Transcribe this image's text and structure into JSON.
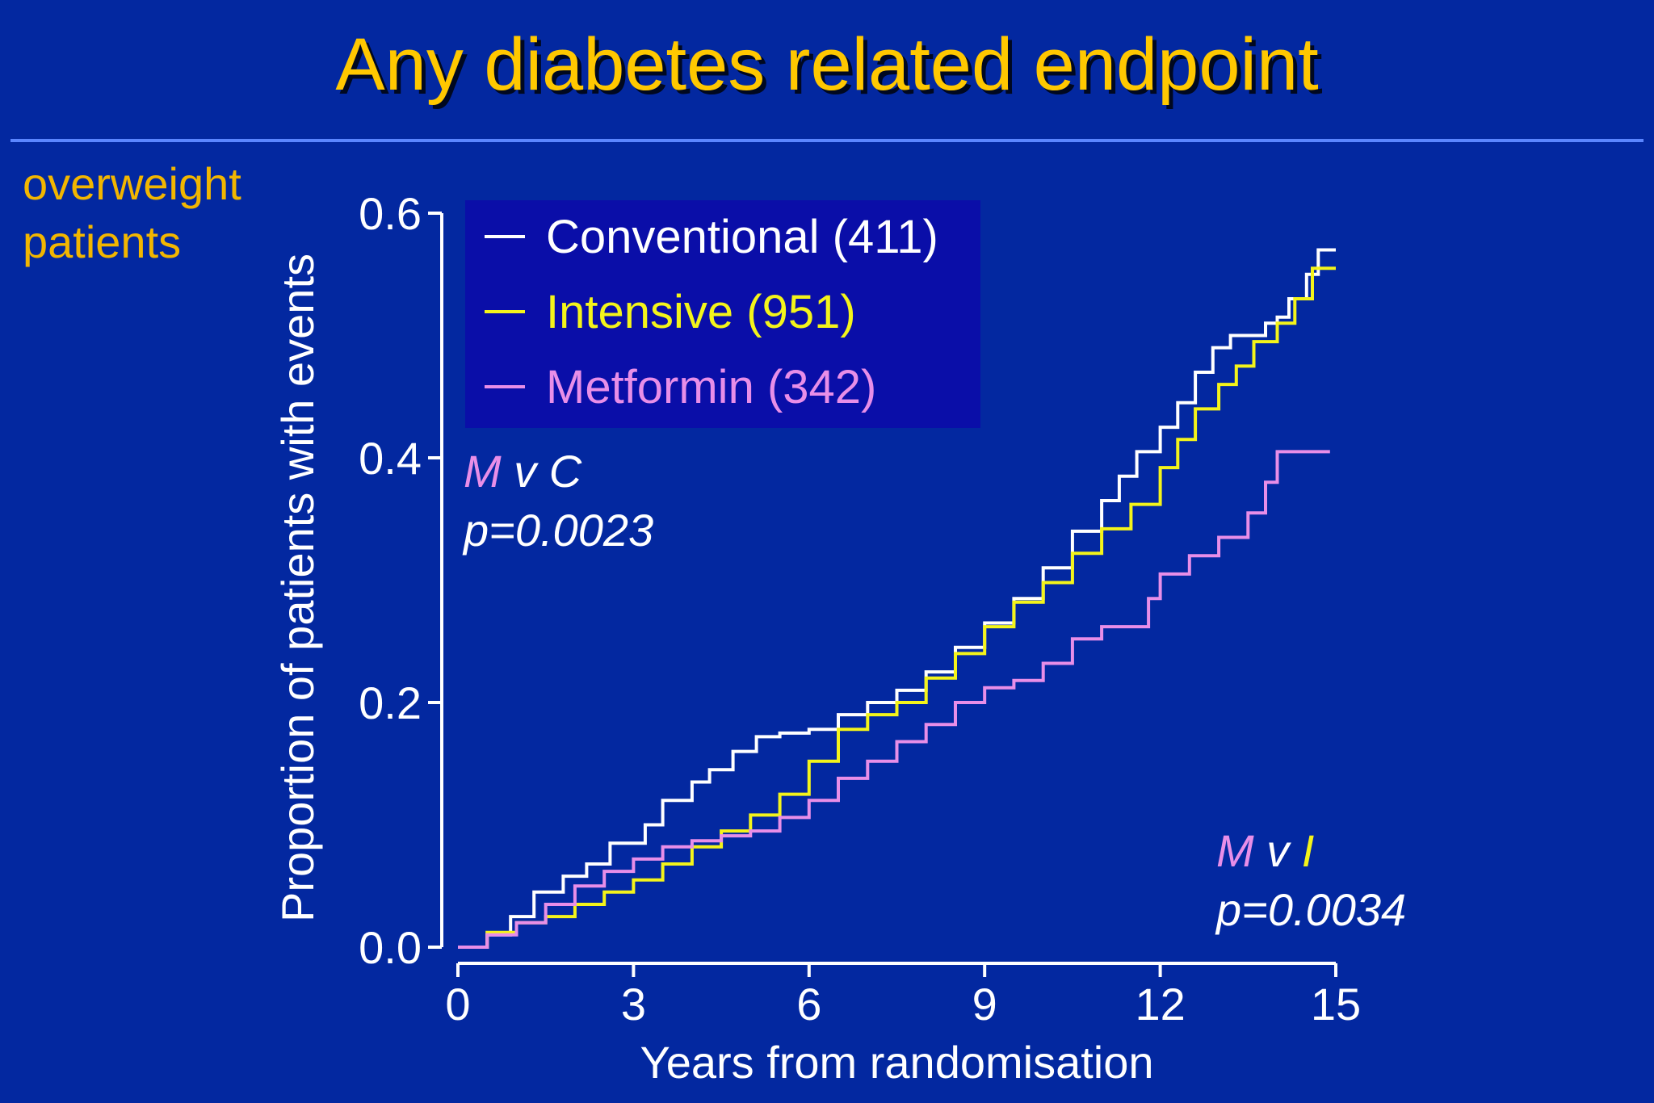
{
  "slide": {
    "title": "Any diabetes related endpoint",
    "subtitle_line1": "overweight",
    "subtitle_line2": "patients"
  },
  "colors": {
    "background": "#0328a0",
    "title": "#ffc800",
    "subtitle": "#f2b600",
    "rule": "#5b86ff",
    "legend_box": "#0a0ea8",
    "conventional": "#ffffff",
    "intensive": "#f4f41a",
    "metformin": "#e88ee8"
  },
  "chart_data": {
    "type": "line",
    "step": true,
    "xlabel": "Years from randomisation",
    "ylabel": "Proportion of patients with events",
    "xlim": [
      0,
      15
    ],
    "ylim": [
      0,
      0.6
    ],
    "xticks": [
      "0",
      "3",
      "6",
      "9",
      "12",
      "15"
    ],
    "yticks": [
      "0.0",
      "0.2",
      "0.4",
      "0.6"
    ],
    "legend": {
      "position": "top-left",
      "entries": [
        {
          "label": "Conventional (411)",
          "series": "conventional"
        },
        {
          "label": "Intensive (951)",
          "series": "intensive"
        },
        {
          "label": "Metformin (342)",
          "series": "metformin"
        }
      ]
    },
    "annotations": {
      "mvc": {
        "m": "M",
        "v": " v ",
        "other": "C",
        "p": "p=0.0023"
      },
      "mvi": {
        "m": "M",
        "v": " v ",
        "other": "I",
        "p": "p=0.0034"
      }
    },
    "series": [
      {
        "name": "Conventional (411)",
        "key": "conventional",
        "x": [
          0,
          0.5,
          0.9,
          1.3,
          1.8,
          2.2,
          2.6,
          3.2,
          3.5,
          4.0,
          4.3,
          4.7,
          5.1,
          5.5,
          6.0,
          6.5,
          7.0,
          7.5,
          8.0,
          8.5,
          9.0,
          9.5,
          10.0,
          10.5,
          11.0,
          11.3,
          11.6,
          12.0,
          12.3,
          12.6,
          12.9,
          13.2,
          13.5,
          13.8,
          14.0,
          14.2,
          14.5,
          14.7
        ],
        "y": [
          0,
          0.01,
          0.025,
          0.045,
          0.058,
          0.068,
          0.085,
          0.1,
          0.12,
          0.135,
          0.145,
          0.16,
          0.172,
          0.175,
          0.178,
          0.19,
          0.2,
          0.21,
          0.225,
          0.245,
          0.265,
          0.285,
          0.31,
          0.34,
          0.365,
          0.385,
          0.405,
          0.425,
          0.445,
          0.47,
          0.49,
          0.5,
          0.5,
          0.51,
          0.515,
          0.53,
          0.55,
          0.57
        ]
      },
      {
        "name": "Intensive (951)",
        "key": "intensive",
        "x": [
          0,
          0.5,
          1.0,
          1.5,
          2.0,
          2.5,
          3.0,
          3.5,
          4.0,
          4.5,
          5.0,
          5.5,
          6.0,
          6.5,
          7.0,
          7.5,
          8.0,
          8.5,
          9.0,
          9.5,
          10.0,
          10.5,
          11.0,
          11.5,
          12.0,
          12.3,
          12.6,
          13.0,
          13.3,
          13.6,
          14.0,
          14.3,
          14.6
        ],
        "y": [
          0,
          0.012,
          0.02,
          0.025,
          0.035,
          0.045,
          0.055,
          0.068,
          0.082,
          0.095,
          0.108,
          0.125,
          0.152,
          0.178,
          0.19,
          0.2,
          0.22,
          0.24,
          0.262,
          0.282,
          0.298,
          0.322,
          0.342,
          0.362,
          0.392,
          0.415,
          0.44,
          0.46,
          0.475,
          0.495,
          0.51,
          0.53,
          0.555
        ]
      },
      {
        "name": "Metformin (342)",
        "key": "metformin",
        "x": [
          0,
          0.5,
          1.0,
          1.5,
          2.0,
          2.5,
          3.0,
          3.5,
          4.0,
          4.5,
          5.0,
          5.5,
          6.0,
          6.5,
          7.0,
          7.5,
          8.0,
          8.5,
          9.0,
          9.5,
          10.0,
          10.5,
          11.0,
          11.5,
          11.8,
          12.0,
          12.5,
          13.0,
          13.5,
          13.8,
          14.0,
          14.5
        ],
        "y": [
          0,
          0.01,
          0.02,
          0.035,
          0.05,
          0.062,
          0.072,
          0.082,
          0.087,
          0.091,
          0.095,
          0.106,
          0.12,
          0.138,
          0.152,
          0.168,
          0.182,
          0.2,
          0.212,
          0.218,
          0.232,
          0.252,
          0.262,
          0.262,
          0.285,
          0.305,
          0.32,
          0.335,
          0.355,
          0.38,
          0.405,
          0.405
        ]
      }
    ]
  }
}
